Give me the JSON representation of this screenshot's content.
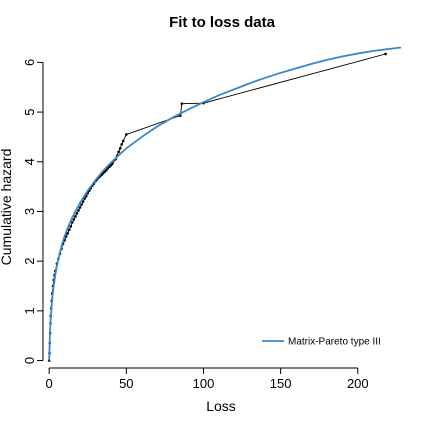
{
  "chart_data": {
    "type": "line",
    "title": "Fit to loss data",
    "xlabel": "Loss",
    "ylabel": "Cumulative hazard",
    "xlim": [
      -4,
      228
    ],
    "ylim": [
      -0.15,
      6.35
    ],
    "x_ticks": [
      0,
      50,
      100,
      150,
      200
    ],
    "y_ticks": [
      0,
      1,
      2,
      3,
      4,
      5,
      6
    ],
    "grid": false,
    "legend_position": "bottom-right",
    "series": [
      {
        "name": "Matrix-Pareto type III",
        "kind": "fitted-curve",
        "color": "#3a87c8",
        "x": [
          0,
          0.5,
          1,
          2,
          3,
          4,
          5,
          6,
          8,
          10,
          12,
          15,
          18,
          20,
          25,
          30,
          35,
          40,
          45,
          50,
          60,
          70,
          80,
          90,
          100,
          110,
          120,
          130,
          140,
          150,
          160,
          170,
          180,
          190,
          200,
          210,
          220,
          228
        ],
        "y": [
          0,
          0.55,
          0.85,
          1.25,
          1.52,
          1.73,
          1.9,
          2.05,
          2.3,
          2.5,
          2.67,
          2.88,
          3.06,
          3.17,
          3.42,
          3.63,
          3.82,
          3.98,
          4.13,
          4.27,
          4.5,
          4.71,
          4.89,
          5.05,
          5.2,
          5.34,
          5.46,
          5.58,
          5.69,
          5.79,
          5.88,
          5.97,
          6.05,
          6.12,
          6.18,
          6.23,
          6.27,
          6.3
        ]
      },
      {
        "name": "",
        "kind": "empirical-step",
        "color": "#000000",
        "x": [
          0,
          0.2,
          0.4,
          0.6,
          0.8,
          1,
          1.3,
          1.6,
          2,
          2.5,
          3,
          3.5,
          4,
          5,
          6,
          7,
          8,
          9,
          10,
          11,
          12,
          13,
          14,
          15,
          16,
          17,
          18,
          19,
          20,
          21,
          22,
          23,
          24,
          25,
          26,
          27,
          28,
          29,
          30,
          31,
          32,
          33,
          34,
          35,
          36,
          37,
          38,
          39,
          40,
          41,
          43,
          44,
          45,
          46,
          47,
          48,
          50,
          85,
          86,
          100,
          218
        ],
        "y": [
          0,
          0.15,
          0.35,
          0.55,
          0.75,
          0.9,
          1.05,
          1.2,
          1.35,
          1.5,
          1.62,
          1.72,
          1.8,
          1.95,
          2.05,
          2.15,
          2.25,
          2.35,
          2.42,
          2.5,
          2.56,
          2.63,
          2.7,
          2.78,
          2.84,
          2.9,
          2.96,
          3.02,
          3.08,
          3.14,
          3.2,
          3.26,
          3.31,
          3.37,
          3.42,
          3.47,
          3.52,
          3.56,
          3.61,
          3.64,
          3.68,
          3.71,
          3.74,
          3.77,
          3.8,
          3.83,
          3.87,
          3.9,
          3.93,
          3.96,
          4.05,
          4.12,
          4.2,
          4.27,
          4.35,
          4.42,
          4.55,
          4.93,
          5.17,
          5.18,
          6.17
        ]
      }
    ]
  }
}
